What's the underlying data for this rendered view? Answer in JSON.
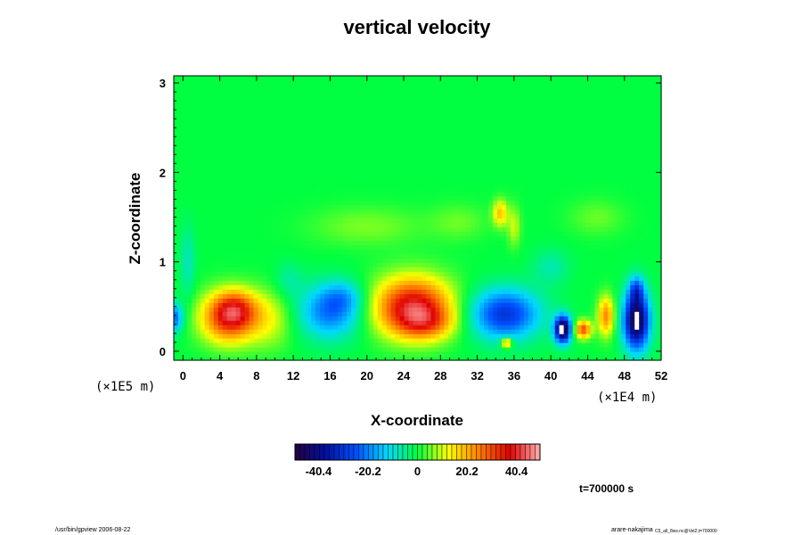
{
  "chart_data": {
    "type": "heatmap",
    "title": "vertical velocity",
    "xlabel": "X-coordinate",
    "ylabel": "Z-coordinate",
    "x_scale_label": "(×1E4 m)",
    "y_scale_label": "(×1E5 m)",
    "xlim": [
      -1,
      52
    ],
    "ylim": [
      -0.1,
      3.08
    ],
    "x_ticks": [
      0,
      4,
      8,
      12,
      16,
      20,
      24,
      28,
      32,
      36,
      40,
      44,
      48,
      52
    ],
    "y_ticks": [
      0,
      1,
      2,
      3
    ],
    "x_tick_labels": [
      "0",
      "4",
      "8",
      "12",
      "16",
      "20",
      "24",
      "28",
      "32",
      "36",
      "40",
      "44",
      "48",
      "52"
    ],
    "y_tick_labels": [
      "0",
      "1",
      "2",
      "3"
    ],
    "colorbar": {
      "min": -50,
      "max": 50,
      "ticks": [
        -40.4,
        -20.2,
        0,
        20.2,
        40.4
      ],
      "tick_labels": [
        "-40.4",
        "-20.2",
        "0",
        "20.2",
        "40.4"
      ],
      "colormap": "rainbow",
      "stops": [
        "#240040",
        "#0010a0",
        "#0050ff",
        "#00d8ff",
        "#00ff40",
        "#ffff00",
        "#ff8000",
        "#e00000",
        "#ffb0b0"
      ]
    },
    "background_value": 0,
    "features": [
      {
        "x": -1.0,
        "z": 0.38,
        "value": -24,
        "rx": 1.0,
        "rz": 0.16
      },
      {
        "x": 5.0,
        "z": 0.38,
        "value": 34,
        "rx": 3.0,
        "rz": 0.28
      },
      {
        "x": 5.8,
        "z": 0.5,
        "value": 14,
        "rx": 2.2,
        "rz": 0.2
      },
      {
        "x": 9.5,
        "z": 0.36,
        "value": 10,
        "rx": 2.5,
        "rz": 0.32
      },
      {
        "x": 16.0,
        "z": 0.45,
        "value": -22,
        "rx": 3.4,
        "rz": 0.3
      },
      {
        "x": 17.5,
        "z": 0.62,
        "value": -9,
        "rx": 2.2,
        "rz": 0.18
      },
      {
        "x": 25.0,
        "z": 0.5,
        "value": 40,
        "rx": 4.2,
        "rz": 0.33
      },
      {
        "x": 26.5,
        "z": 0.32,
        "value": 14,
        "rx": 3.0,
        "rz": 0.18
      },
      {
        "x": 35.0,
        "z": 0.42,
        "value": -30,
        "rx": 3.8,
        "rz": 0.28
      },
      {
        "x": 34.5,
        "z": 1.55,
        "value": 18,
        "rx": 0.8,
        "rz": 0.15
      },
      {
        "x": 36.0,
        "z": 1.4,
        "value": 10,
        "rx": 0.7,
        "rz": 0.22
      },
      {
        "x": 30.0,
        "z": 1.45,
        "value": 5,
        "rx": 3.0,
        "rz": 0.2
      },
      {
        "x": 35.2,
        "z": 0.1,
        "value": 26,
        "rx": 0.6,
        "rz": 0.06
      },
      {
        "x": 41.3,
        "z": 0.25,
        "value": -52,
        "rx": 0.9,
        "rz": 0.15
      },
      {
        "x": 43.5,
        "z": 0.25,
        "value": 30,
        "rx": 0.9,
        "rz": 0.1
      },
      {
        "x": 46.0,
        "z": 0.4,
        "value": 24,
        "rx": 0.9,
        "rz": 0.22
      },
      {
        "x": 49.3,
        "z": 0.35,
        "value": -50,
        "rx": 1.4,
        "rz": 0.32
      },
      {
        "x": 49.3,
        "z": 0.7,
        "value": -18,
        "rx": 0.8,
        "rz": 0.15
      },
      {
        "x": 20.0,
        "z": 1.4,
        "value": 6,
        "rx": 6.0,
        "rz": 0.22
      },
      {
        "x": 45.0,
        "z": 1.5,
        "value": 5,
        "rx": 3.0,
        "rz": 0.2
      },
      {
        "x": 40.0,
        "z": 0.95,
        "value": -7,
        "rx": 2.0,
        "rz": 0.2
      },
      {
        "x": 0.5,
        "z": 1.0,
        "value": -8,
        "rx": 0.8,
        "rz": 0.4
      },
      {
        "x": 11.5,
        "z": 0.8,
        "value": -6,
        "rx": 1.5,
        "rz": 0.2
      }
    ],
    "time_label": "t=700000 s"
  },
  "footer": {
    "left": "/usr/bin/gpview 2006-08-22",
    "right_main": "arare-nakajima",
    "right_sub": "C5_all_8ws.nc@Vel2,t=700000"
  },
  "colors": {
    "background": "#ffffff",
    "frame": "#000000",
    "plot_bg": "#00ff40"
  }
}
